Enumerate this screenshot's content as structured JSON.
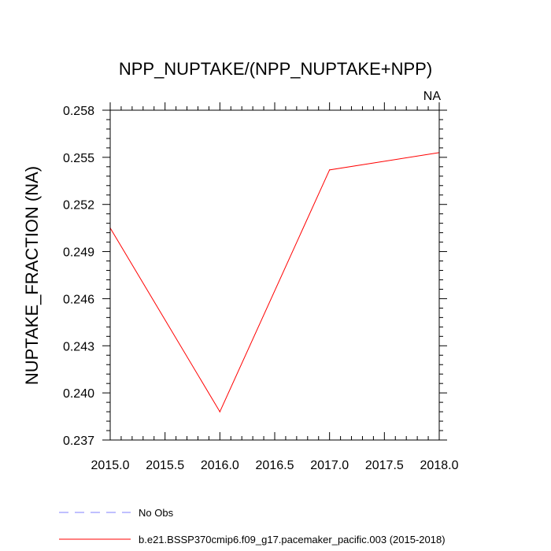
{
  "chart_data": {
    "type": "line",
    "title": "NPP_NUPTAKE/(NPP_NUPTAKE+NPP)",
    "subtitle_right": "NA",
    "xlabel": "",
    "ylabel": "NUPTAKE_FRACTION  (NA)",
    "xlim": [
      2015.0,
      2018.0
    ],
    "ylim": [
      0.237,
      0.258
    ],
    "x_ticks": [
      2015.0,
      2015.5,
      2016.0,
      2016.5,
      2017.0,
      2017.5,
      2018.0
    ],
    "x_tick_labels": [
      "2015.0",
      "2015.5",
      "2016.0",
      "2016.5",
      "2017.0",
      "2017.5",
      "2018.0"
    ],
    "y_ticks": [
      0.237,
      0.24,
      0.243,
      0.246,
      0.249,
      0.252,
      0.255,
      0.258
    ],
    "y_tick_labels": [
      "0.237",
      "0.240",
      "0.243",
      "0.246",
      "0.249",
      "0.252",
      "0.255",
      "0.258"
    ],
    "grid": false,
    "legend_position": "bottom-left",
    "series": [
      {
        "name": "b.e21.BSSP370cmip6.f09_g17.pacemaker_pacific.003 (2015-2018)",
        "color": "#ff0000",
        "dash": "solid",
        "x": [
          2015.0,
          2016.0,
          2017.0,
          2018.0
        ],
        "y": [
          0.2505,
          0.2388,
          0.2542,
          0.2553
        ]
      }
    ],
    "legend": [
      {
        "label": "No Obs",
        "color": "#8080ff",
        "dash": "dashed"
      },
      {
        "label": "b.e21.BSSP370cmip6.f09_g17.pacemaker_pacific.003 (2015-2018)",
        "color": "#ff0000",
        "dash": "solid"
      }
    ]
  }
}
